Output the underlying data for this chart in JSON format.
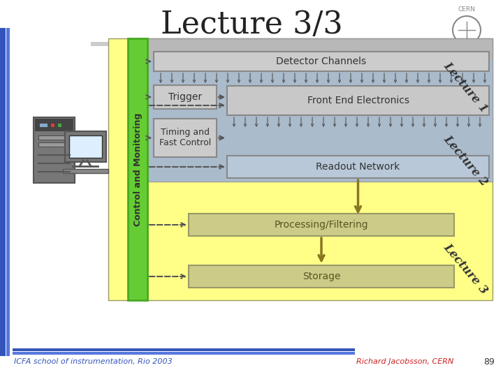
{
  "title": "Lecture 3/3",
  "title_fontsize": 32,
  "background_color": "#ffffff",
  "yellow_bg": "#ffff88",
  "green_bar_color": "#66cc33",
  "gray_outer_bg": "#b8b8b8",
  "blue_inner_bg": "#aabbcc",
  "boxes": {
    "detector_channels": {
      "label": "Detector Channels",
      "color": "#cccccc",
      "border": "#888888"
    },
    "trigger": {
      "label": "Trigger",
      "color": "#cccccc",
      "border": "#888888"
    },
    "front_end": {
      "label": "Front End Electronics",
      "color": "#c0c8d8",
      "border": "#888888"
    },
    "timing": {
      "label": "Timing and\nFast Control",
      "color": "#cccccc",
      "border": "#888888"
    },
    "readout": {
      "label": "Readout Network",
      "color": "#b8c4d4",
      "border": "#888888"
    },
    "processing": {
      "label": "Processing/Filtering",
      "color": "#cccc88",
      "border": "#999966"
    },
    "storage": {
      "label": "Storage",
      "color": "#cccc88",
      "border": "#999966"
    }
  },
  "lecture_labels": [
    "Lecture 1",
    "Lecture 2",
    "Lecture 3"
  ],
  "control_label": "Control and Monitoring",
  "footer_left": "ICFA school of instrumentation, Rio 2003",
  "footer_right": "Richard Jacobsson, CERN",
  "footer_page": "89",
  "blue_left_bar_color": "#3355aa",
  "cern_color": "#888888"
}
